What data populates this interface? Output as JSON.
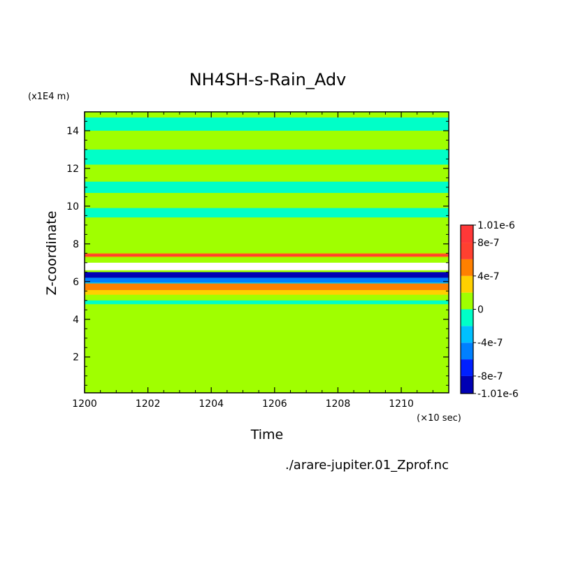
{
  "chart_data": {
    "type": "heatmap",
    "title": "NH4SH-s-Rain_Adv",
    "xlabel": "Time",
    "ylabel": "Z-coordinate",
    "x_unit": "(×10 sec)",
    "y_unit": "(x1E4 m)",
    "source": "./arare-jupiter.01_Zprof.nc",
    "xlim": [
      1200,
      1211.5
    ],
    "ylim": [
      0.1,
      15.0
    ],
    "x_ticks": [
      1200,
      1202,
      1204,
      1206,
      1208,
      1210
    ],
    "x_tick_labels": [
      "1200",
      "1202",
      "1204",
      "1206",
      "1208",
      "1210"
    ],
    "y_ticks": [
      2,
      4,
      6,
      8,
      10,
      12,
      14
    ],
    "y_tick_labels": [
      "2",
      "4",
      "6",
      "8",
      "10",
      "12",
      "14"
    ],
    "colorbar": {
      "levels": [
        -1.01e-06,
        -8e-07,
        -6e-07,
        -4e-07,
        -2e-07,
        0,
        2e-07,
        4e-07,
        6e-07,
        8e-07,
        1.01e-06
      ],
      "colors": [
        "#0000b4",
        "#0020ff",
        "#0080ff",
        "#00c0ff",
        "#00ffc8",
        "#a0ff00",
        "#ffd000",
        "#ff8000",
        "#ff4030",
        "#ff3838"
      ],
      "tick_values": [
        1.01e-06,
        8e-07,
        4e-07,
        0,
        -4e-07,
        -8e-07,
        -1.01e-06
      ],
      "tick_labels": [
        "1.01e-6",
        "8e-7",
        "4e-7",
        "0",
        "-4e-7",
        "-8e-7",
        "-1.01e-6"
      ]
    },
    "background_color": "#a0ff00",
    "bands": [
      {
        "color": "#00ffc8",
        "z0": 14.0,
        "z1": 14.7
      },
      {
        "color": "#00ffc8",
        "z0": 12.2,
        "z1": 13.0
      },
      {
        "color": "#00ffc8",
        "z0": 10.7,
        "z1": 11.3
      },
      {
        "color": "#00ffc8",
        "z0": 9.4,
        "z1": 9.9
      },
      {
        "color": "#ff8000",
        "z0": 7.3,
        "z1": 7.5
      },
      {
        "color": "#ff3838",
        "z0": 7.35,
        "z1": 7.45
      },
      {
        "color": "#ffffff",
        "z0": 6.6,
        "z1": 7.0
      },
      {
        "color": "#0000b4",
        "z0": 6.2,
        "z1": 6.5
      },
      {
        "color": "#0080ff",
        "z0": 5.95,
        "z1": 6.2
      },
      {
        "color": "#00c0ff",
        "z0": 5.8,
        "z1": 5.95
      },
      {
        "color": "#ffd000",
        "z0": 5.3,
        "z1": 5.55
      },
      {
        "color": "#ff8000",
        "z0": 5.55,
        "z1": 5.9
      },
      {
        "color": "#00ffc8",
        "z0": 4.8,
        "z1": 5.0
      }
    ]
  }
}
